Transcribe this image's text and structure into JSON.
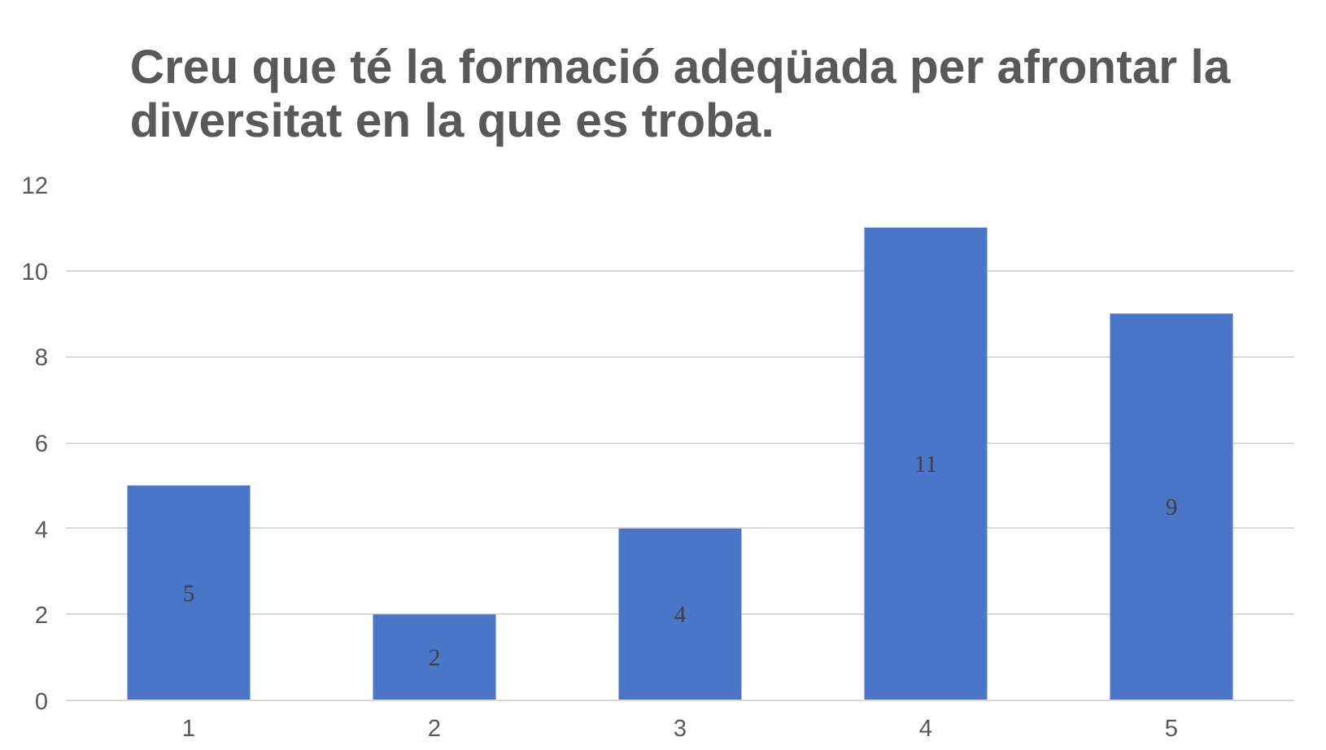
{
  "chart_data": {
    "type": "bar",
    "title": "Creu que té la formació adeqüada per afrontar la diversitat en la que es troba.",
    "categories": [
      "1",
      "2",
      "3",
      "4",
      "5"
    ],
    "values": [
      5,
      2,
      4,
      11,
      9
    ],
    "color": "#4a76c8",
    "ylim": [
      0,
      12
    ],
    "yticks": [
      0,
      2,
      4,
      6,
      8,
      10,
      12
    ],
    "grid": "y",
    "data_labels": true
  }
}
